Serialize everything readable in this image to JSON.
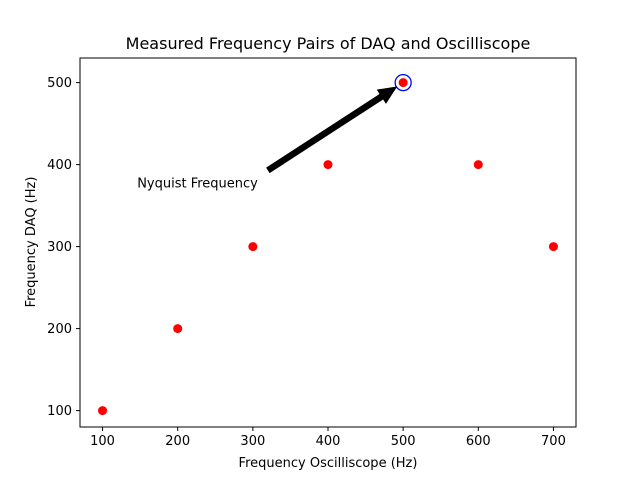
{
  "chart_data": {
    "type": "scatter",
    "title": "Measured Frequency Pairs of DAQ and Oscilliscope",
    "xlabel": "Frequency Oscilliscope (Hz)",
    "ylabel": "Frequency DAQ (Hz)",
    "xlim": [
      70,
      730
    ],
    "ylim": [
      80,
      530
    ],
    "xticks": [
      100,
      200,
      300,
      400,
      500,
      600,
      700
    ],
    "yticks": [
      100,
      200,
      300,
      400,
      500
    ],
    "grid": false,
    "series": [
      {
        "x": [
          100,
          200,
          300,
          400,
          500,
          600,
          700
        ],
        "y": [
          100,
          200,
          300,
          400,
          500,
          400,
          300
        ],
        "color": "#ff0000",
        "marker": "circle"
      }
    ],
    "highlight": {
      "x": 500,
      "y": 500,
      "color": "#0000ff",
      "marker": "open-circle"
    },
    "annotations": [
      {
        "text": "Nyquist Frequency",
        "point": {
          "x": 500,
          "y": 500
        },
        "text_anchor": {
          "x": 320,
          "y": 393
        },
        "arrow_color": "#000000"
      }
    ]
  }
}
